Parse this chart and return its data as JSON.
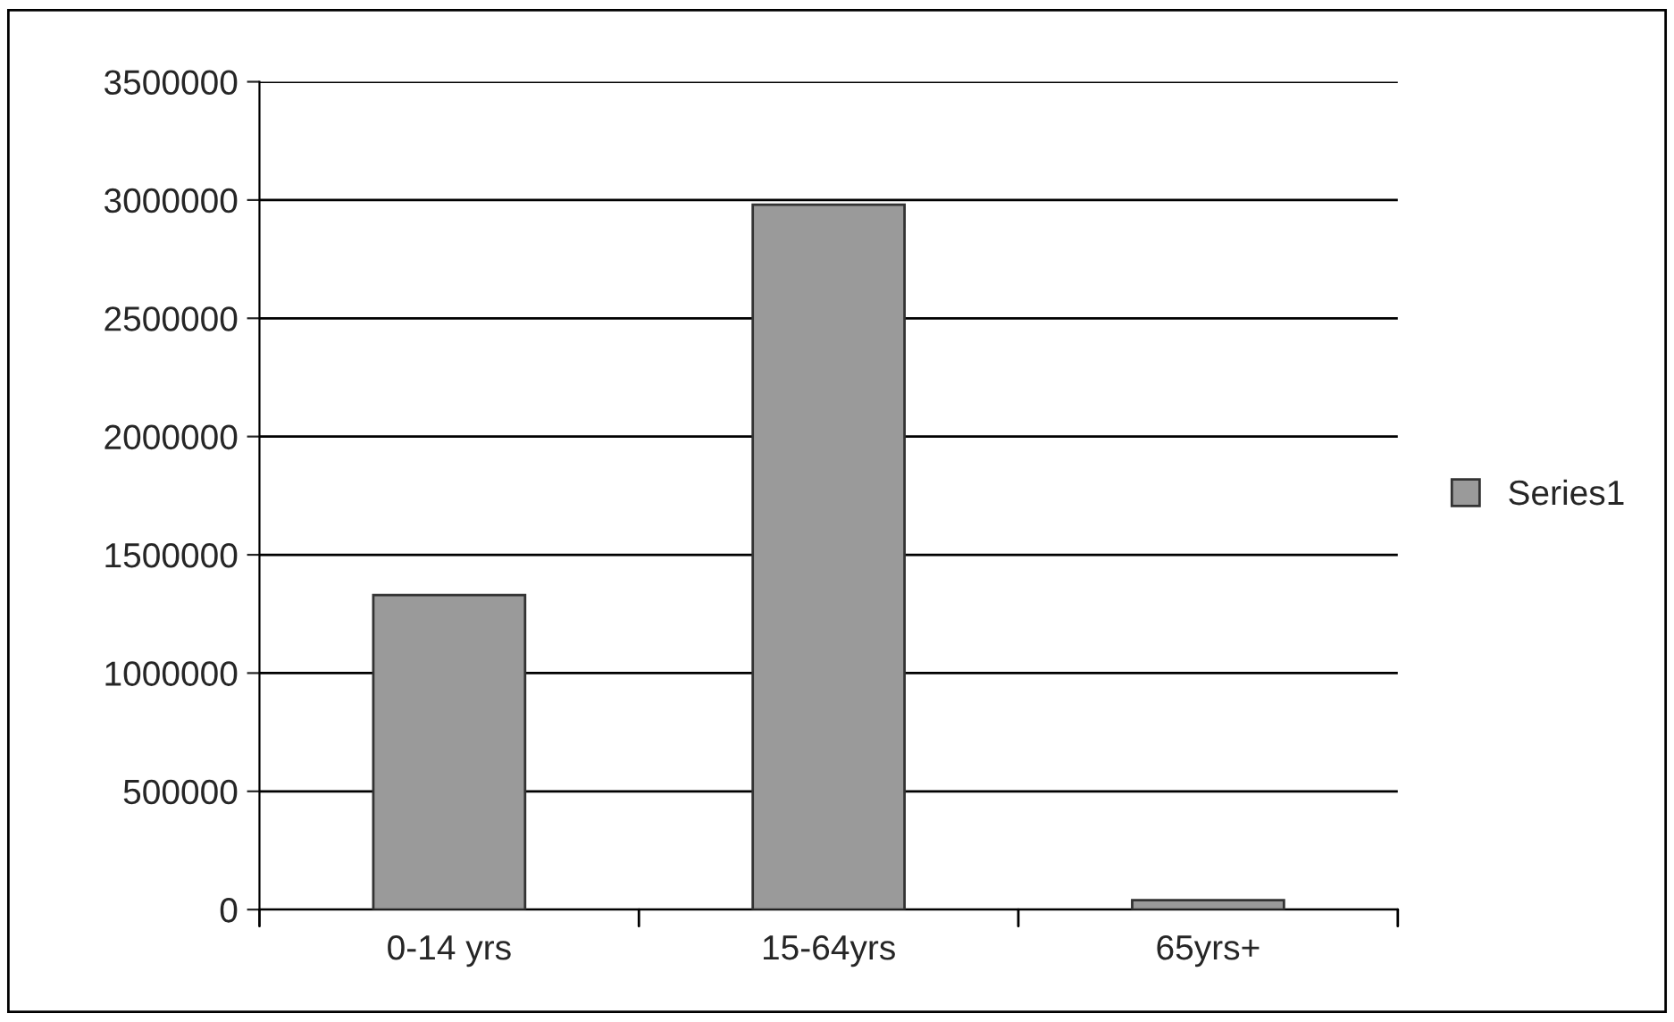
{
  "chart_data": {
    "type": "bar",
    "categories": [
      "0-14 yrs",
      "15-64yrs",
      "65yrs+"
    ],
    "series": [
      {
        "name": "Series1",
        "color": "#9a9a9a",
        "values": [
          1330000,
          2980000,
          40000
        ]
      }
    ],
    "ylim": [
      0,
      3500000
    ],
    "yticks": [
      0,
      500000,
      1000000,
      1500000,
      2000000,
      2500000,
      3000000,
      3500000
    ],
    "grid": "y",
    "legend": "right"
  }
}
